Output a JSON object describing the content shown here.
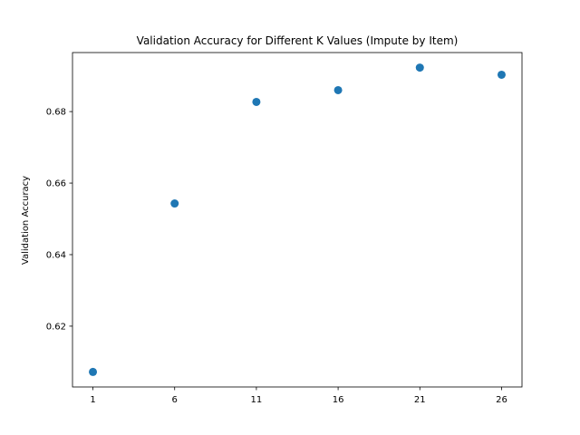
{
  "chart_data": {
    "type": "scatter",
    "title": "Validation Accuracy for Different K Values (Impute by Item)",
    "xlabel": "",
    "ylabel": "Validation Accuracy",
    "x": [
      1,
      6,
      11,
      16,
      21,
      26
    ],
    "y": [
      0.6072,
      0.6543,
      0.6827,
      0.686,
      0.6923,
      0.6903
    ],
    "xticks": [
      "1",
      "6",
      "11",
      "16",
      "21",
      "26"
    ],
    "yticks": [
      "0.62",
      "0.64",
      "0.66",
      "0.68"
    ],
    "ytick_values": [
      0.62,
      0.64,
      0.66,
      0.68
    ],
    "xlim": [
      -0.25,
      27.25
    ],
    "ylim": [
      0.603,
      0.6965
    ],
    "grid": false,
    "marker_color": "#1f77b4"
  }
}
